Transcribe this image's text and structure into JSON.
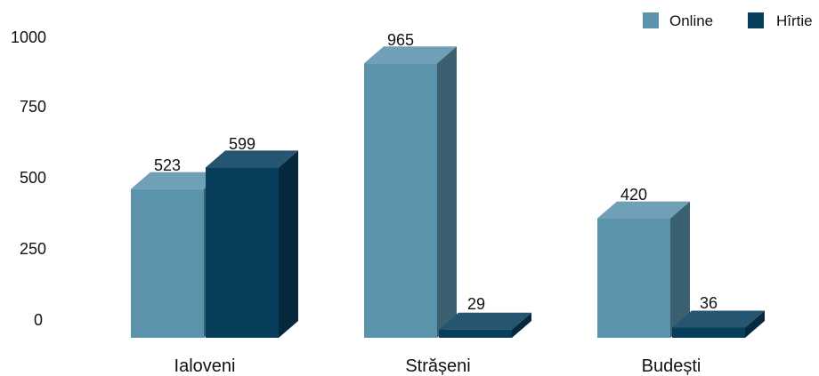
{
  "chart_data": {
    "type": "bar",
    "categories": [
      "Ialoveni",
      "Strășeni",
      "Budești"
    ],
    "series": [
      {
        "name": "Online",
        "values": [
          523,
          965,
          420
        ]
      },
      {
        "name": "Hîrtie",
        "values": [
          599,
          29,
          36
        ]
      }
    ],
    "data_labels": [
      [
        "523",
        "965",
        "420"
      ],
      [
        "599",
        "29",
        "36"
      ]
    ],
    "y_ticks": [
      "1000",
      "750",
      "500",
      "250",
      "0"
    ],
    "ylim": [
      0,
      1000
    ],
    "grid": false,
    "legend": "top-right",
    "colors": {
      "Online": "#5b93ad",
      "Hîrtie": "#073e5c"
    }
  }
}
